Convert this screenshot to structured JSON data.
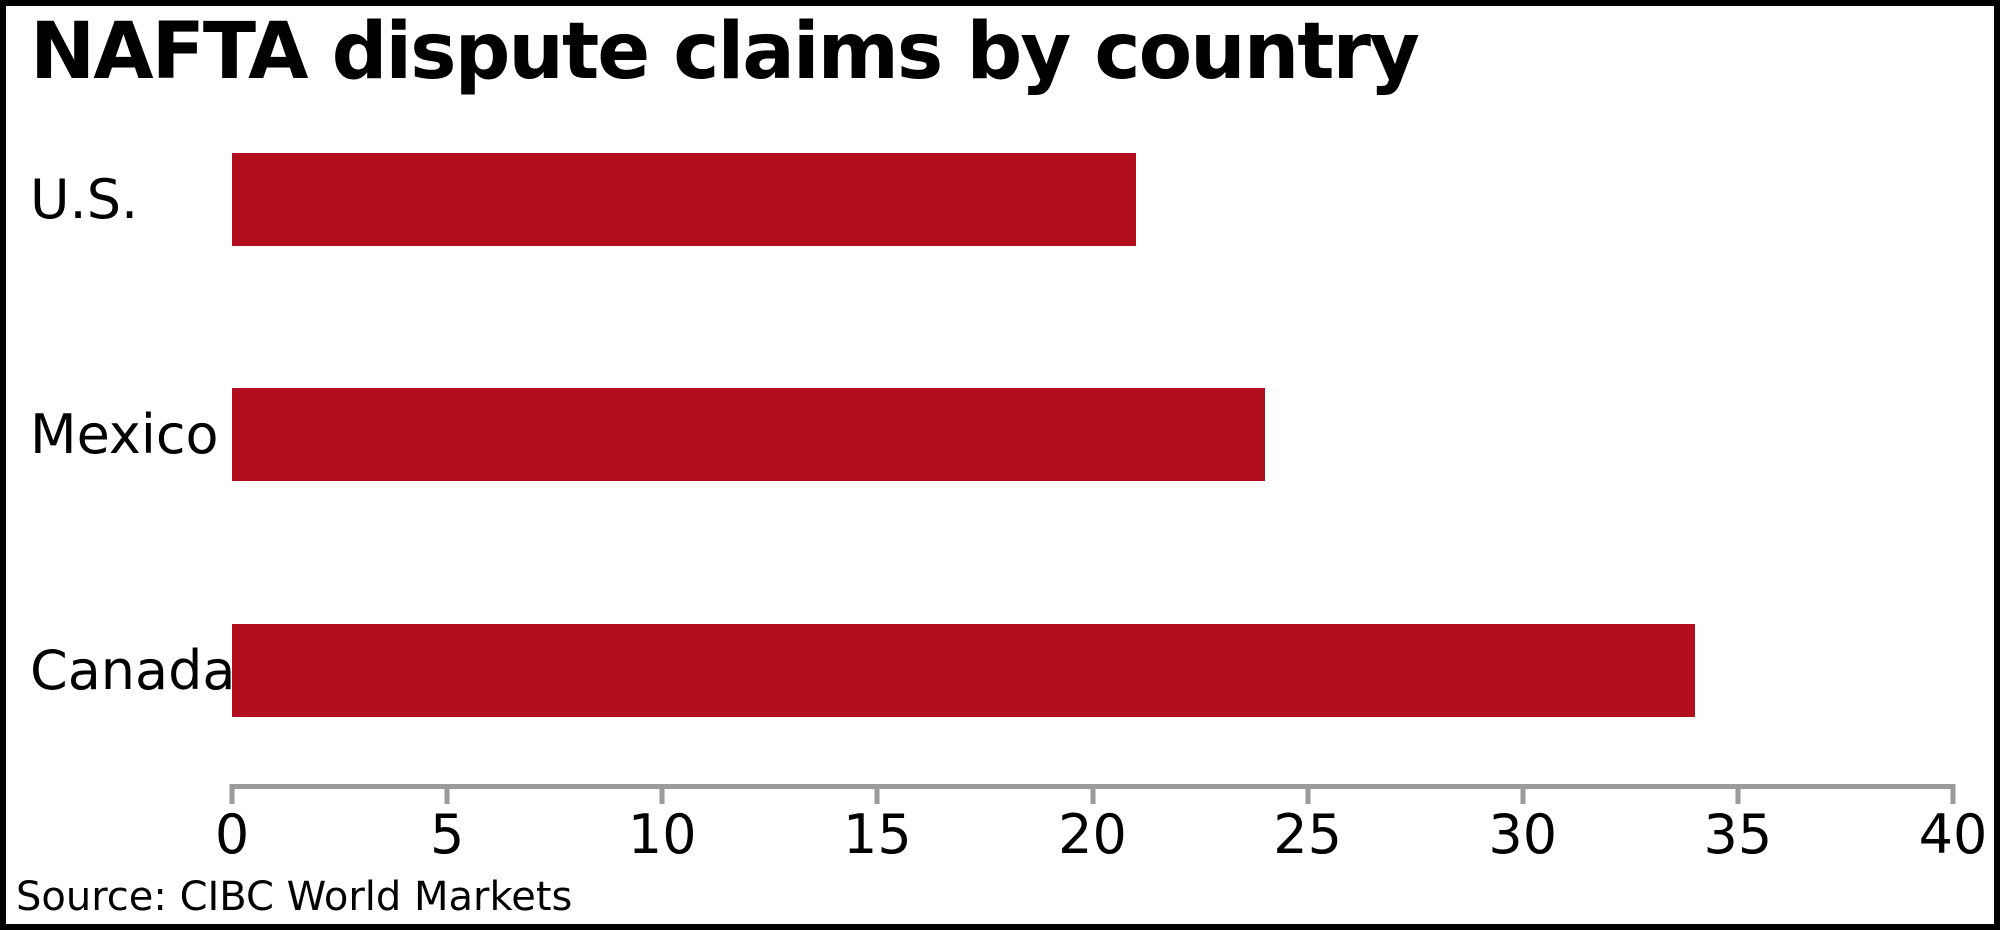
{
  "chart_data": {
    "type": "bar",
    "orientation": "horizontal",
    "title": "NAFTA dispute claims by country",
    "categories": [
      "U.S.",
      "Mexico",
      "Canada"
    ],
    "values": [
      21,
      24,
      34
    ],
    "xlim": [
      0,
      40
    ],
    "xticks": [
      0,
      5,
      10,
      15,
      20,
      25,
      30,
      35,
      40
    ],
    "bar_color": "#B30E1D",
    "axis_color": "#9b9b9b",
    "grid": "off",
    "legend": "none",
    "source": "Source: CIBC World Markets"
  }
}
